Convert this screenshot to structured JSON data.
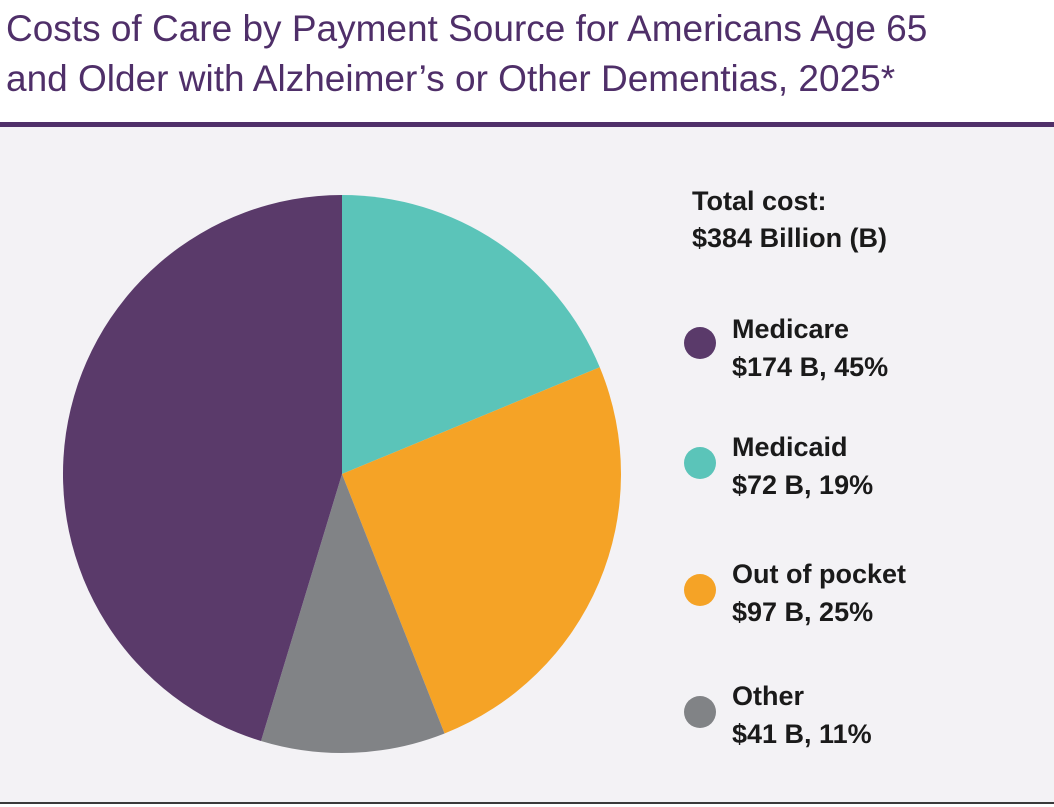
{
  "header": {
    "title_line1": "Costs of Care by Payment Source for Americans Age 65",
    "title_line2": "and Older with Alzheimer’s or Other Dementias, 2025*"
  },
  "summary": {
    "total_label": "Total cost:",
    "total_value": "$384 Billion (B)"
  },
  "chart_data": {
    "type": "pie",
    "title": "Costs of Care by Payment Source for Americans Age 65 and Older with Alzheimer’s or Other Dementias, 2025*",
    "total": 384,
    "unit": "B",
    "start_angle_deg": 0,
    "direction": "clockwise",
    "legend_position": "right",
    "slices": [
      {
        "label": "Medicaid",
        "value": 72,
        "value_text": "$72 B, 19%",
        "percent": 19,
        "color": "#5bc4b9"
      },
      {
        "label": "Out of pocket",
        "value": 97,
        "value_text": "$97 B, 25%",
        "percent": 25,
        "color": "#f5a326"
      },
      {
        "label": "Other",
        "value": 41,
        "value_text": "$41 B, 11%",
        "percent": 11,
        "color": "#818386"
      },
      {
        "label": "Medicare",
        "value": 174,
        "value_text": "$174 B, 45%",
        "percent": 45,
        "color": "#5a3a6a"
      }
    ]
  },
  "legend": [
    {
      "label": "Medicare",
      "value_text": "$174 B, 45%",
      "color": "#5a3a6a"
    },
    {
      "label": "Medicaid",
      "value_text": "$72 B, 19%",
      "color": "#5bc4b9"
    },
    {
      "label": "Out of pocket",
      "value_text": "$97 B, 25%",
      "color": "#f5a326"
    },
    {
      "label": "Other",
      "value_text": "$41 B, 11%",
      "color": "#818386"
    }
  ]
}
